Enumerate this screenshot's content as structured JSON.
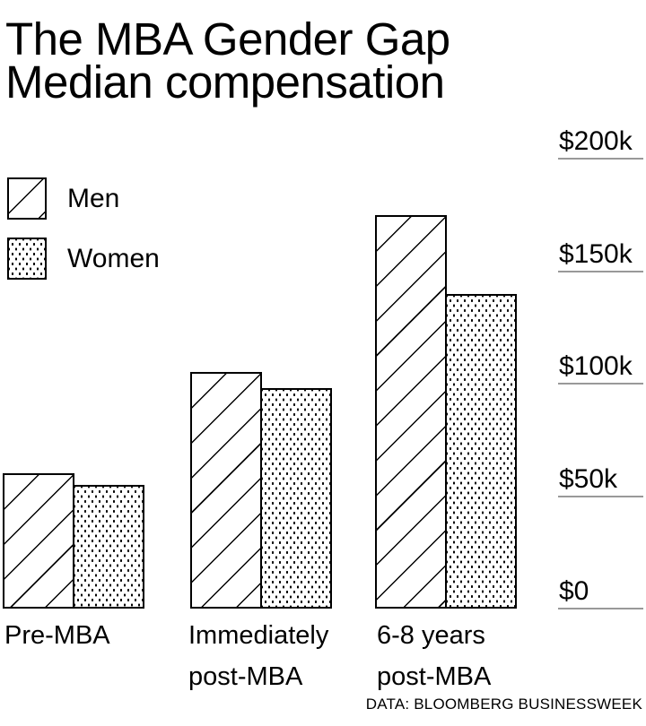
{
  "title": {
    "line1": "The MBA Gender Gap",
    "line2": "Median compensation"
  },
  "source_label": "DATA: BLOOMBERG BUSINESSWEEK",
  "colors": {
    "ink": "#000000",
    "gridline": "#999999",
    "background": "#ffffff"
  },
  "legend": {
    "items": [
      {
        "label": "Men",
        "pattern": "diagonal-hatch"
      },
      {
        "label": "Women",
        "pattern": "dots"
      }
    ]
  },
  "chart_data": {
    "type": "bar",
    "title": "The MBA Gender Gap",
    "subtitle": "Median compensation",
    "categories": [
      "Pre-MBA",
      "Immediately post-MBA",
      "6-8 years post-MBA"
    ],
    "categories_lines": [
      [
        "Pre-MBA"
      ],
      [
        "Immediately",
        "post-MBA"
      ],
      [
        "6-8 years",
        "post-MBA"
      ]
    ],
    "series": [
      {
        "name": "Men",
        "pattern": "diagonal-hatch",
        "values": [
          60000,
          105000,
          175000
        ]
      },
      {
        "name": "Women",
        "pattern": "dots",
        "values": [
          55000,
          98000,
          140000
        ]
      }
    ],
    "y_axis": {
      "side": "right",
      "min": 0,
      "max": 200000,
      "ticks": [
        {
          "label": "$200k",
          "value": 200000
        },
        {
          "label": "$150k",
          "value": 150000
        },
        {
          "label": "$100k",
          "value": 100000
        },
        {
          "label": "$50k",
          "value": 50000
        },
        {
          "label": "$0",
          "value": 0
        }
      ]
    },
    "legend_position": "top-left",
    "grid": "short-horizontal-rules-under-right-axis-labels",
    "source": "DATA: BLOOMBERG BUSINESSWEEK"
  }
}
